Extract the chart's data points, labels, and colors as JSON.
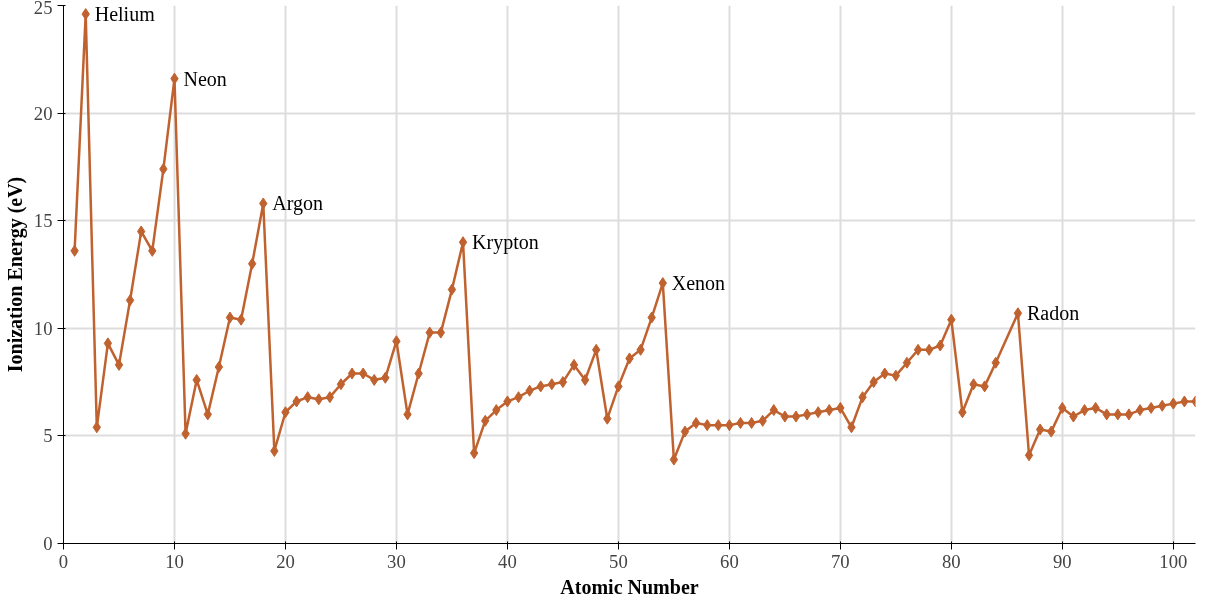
{
  "chart_data": {
    "type": "line",
    "xlabel": "Atomic Number",
    "ylabel": "Ionization Energy (eV)",
    "x": [
      1,
      2,
      3,
      4,
      5,
      6,
      7,
      8,
      9,
      10,
      11,
      12,
      13,
      14,
      15,
      16,
      17,
      18,
      19,
      20,
      21,
      22,
      23,
      24,
      25,
      26,
      27,
      28,
      29,
      30,
      31,
      32,
      33,
      34,
      35,
      36,
      37,
      38,
      39,
      40,
      41,
      42,
      43,
      44,
      45,
      46,
      47,
      48,
      49,
      50,
      51,
      52,
      53,
      54,
      55,
      56,
      57,
      58,
      59,
      60,
      61,
      62,
      63,
      64,
      65,
      66,
      67,
      68,
      69,
      70,
      71,
      72,
      73,
      74,
      75,
      76,
      77,
      78,
      79,
      80,
      81,
      82,
      83,
      84,
      86,
      87,
      88,
      89,
      90,
      91,
      92,
      93,
      94,
      95,
      96,
      97,
      98,
      99,
      100,
      101,
      102
    ],
    "series": [
      {
        "color": "#c0622f",
        "values": [
          13.6,
          24.6,
          5.4,
          9.3,
          8.3,
          11.3,
          14.5,
          13.6,
          17.4,
          21.6,
          5.1,
          7.6,
          6.0,
          8.2,
          10.5,
          10.4,
          13.0,
          15.8,
          4.3,
          6.1,
          6.6,
          6.8,
          6.7,
          6.8,
          7.4,
          7.9,
          7.9,
          7.6,
          7.7,
          9.4,
          6.0,
          7.9,
          9.8,
          9.8,
          11.8,
          14.0,
          4.2,
          5.7,
          6.2,
          6.6,
          6.8,
          7.1,
          7.3,
          7.4,
          7.5,
          8.3,
          7.6,
          9.0,
          5.8,
          7.3,
          8.6,
          9.0,
          10.5,
          12.1,
          3.9,
          5.2,
          5.6,
          5.5,
          5.5,
          5.5,
          5.6,
          5.6,
          5.7,
          6.2,
          5.9,
          5.9,
          6.0,
          6.1,
          6.2,
          6.3,
          5.4,
          6.8,
          7.5,
          7.9,
          7.8,
          8.4,
          9.0,
          9.0,
          9.2,
          10.4,
          6.1,
          7.4,
          7.3,
          8.4,
          10.7,
          4.1,
          5.3,
          5.2,
          6.3,
          5.9,
          6.2,
          6.3,
          6.0,
          6.0,
          6.0,
          6.2,
          6.3,
          6.4,
          6.5,
          6.6,
          6.6
        ]
      }
    ],
    "xlim": [
      0,
      102
    ],
    "ylim": [
      0,
      25
    ],
    "xticks": [
      0,
      10,
      20,
      30,
      40,
      50,
      60,
      70,
      80,
      90,
      100
    ],
    "yticks": [
      0,
      5,
      10,
      15,
      20,
      25
    ],
    "grid": true,
    "marker": "diamond",
    "line_style": "solid",
    "annotations": [
      {
        "text": "Helium",
        "x": 2,
        "y": 24.6
      },
      {
        "text": "Neon",
        "x": 10,
        "y": 21.6
      },
      {
        "text": "Argon",
        "x": 18,
        "y": 15.8
      },
      {
        "text": "Krypton",
        "x": 36,
        "y": 14.0
      },
      {
        "text": "Xenon",
        "x": 54,
        "y": 12.1
      },
      {
        "text": "Radon",
        "x": 86,
        "y": 10.7
      }
    ]
  }
}
